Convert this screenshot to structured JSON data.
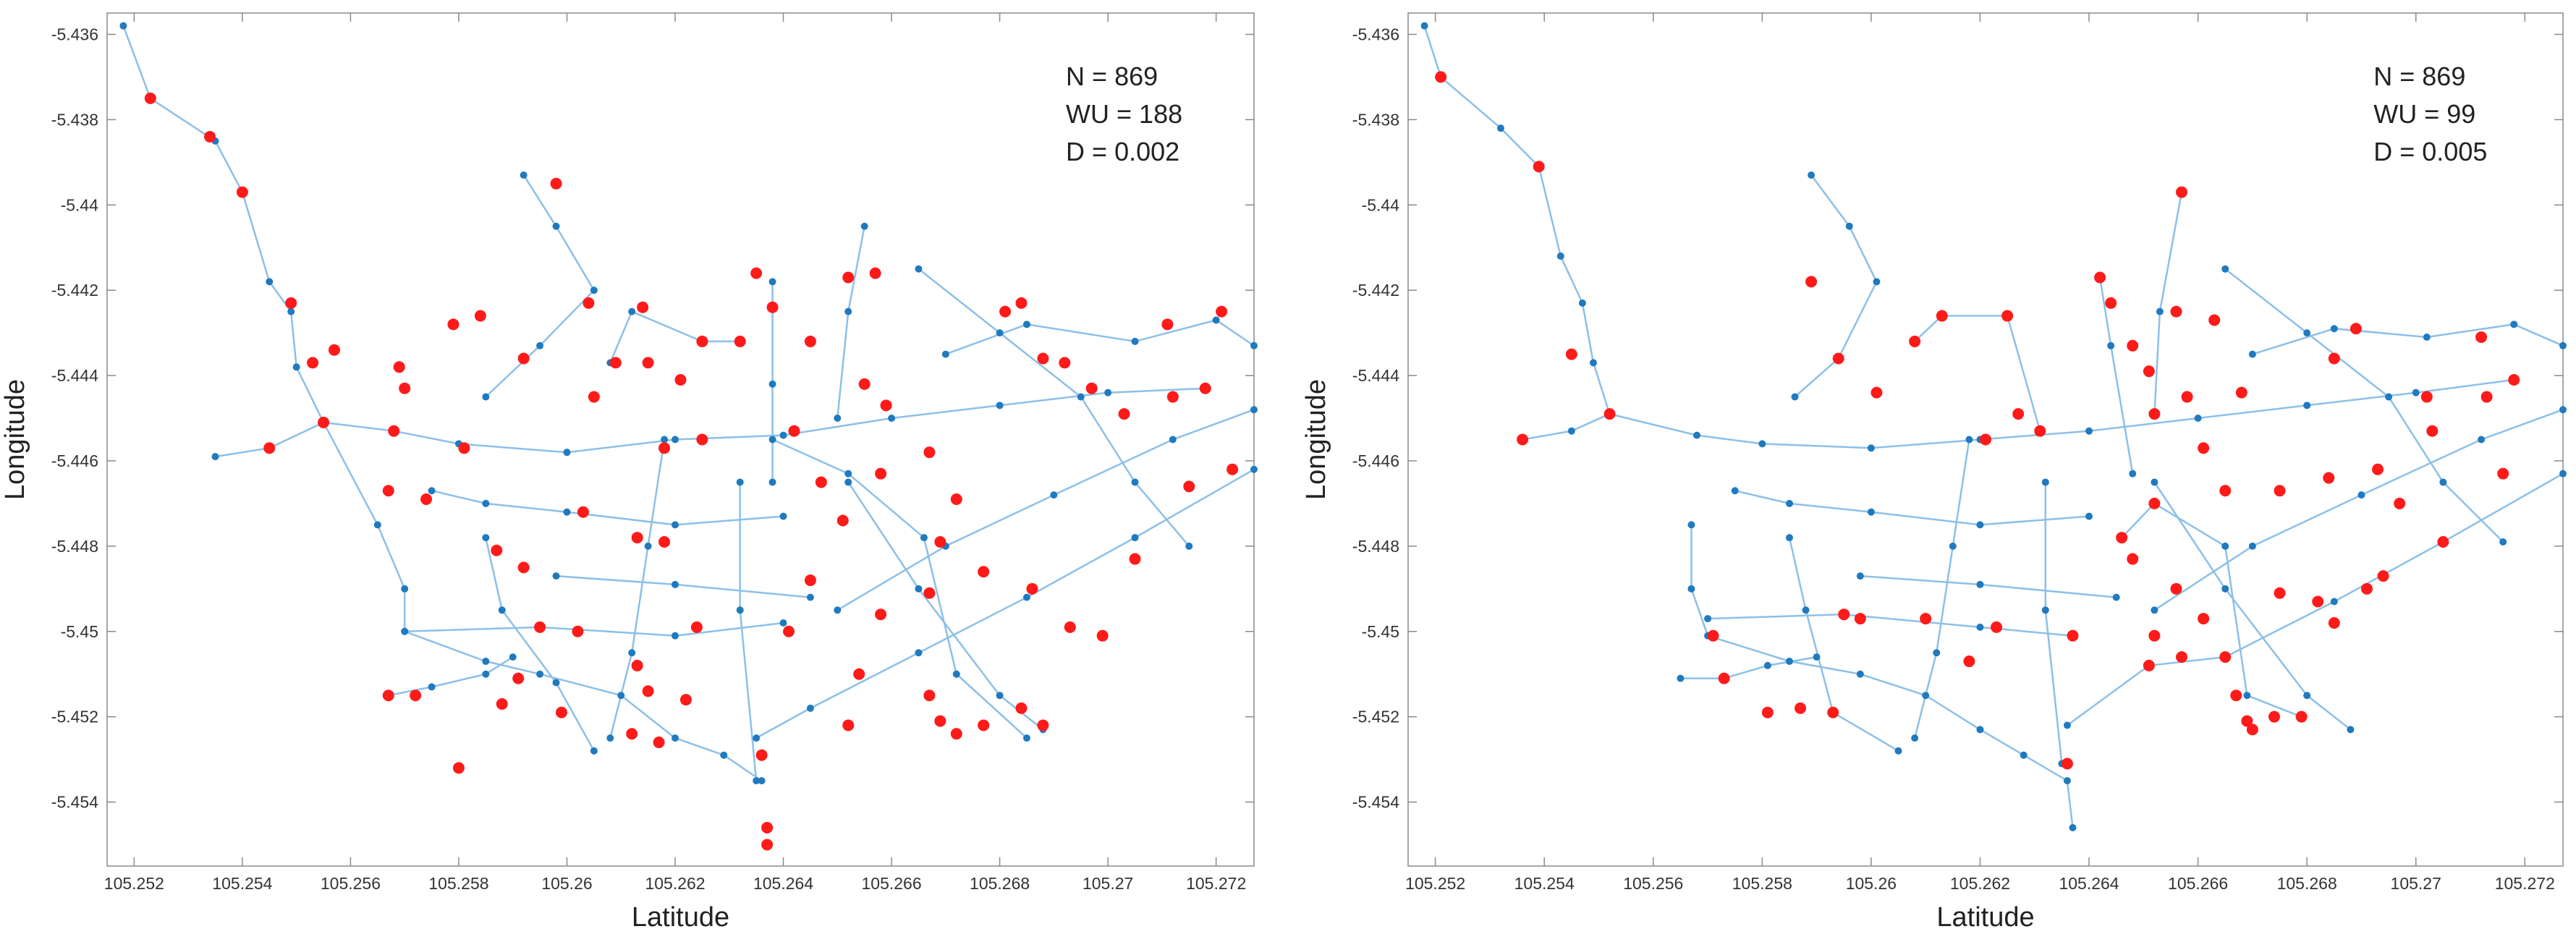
{
  "chart_data": [
    {
      "type": "network",
      "xlabel": "Latitude",
      "ylabel": "Longitude",
      "annotations": [
        "N = 869",
        "WU = 188",
        "D = 0.002"
      ],
      "xlim": [
        105.2515,
        105.2727
      ],
      "ylim": [
        -5.4555,
        -5.4355
      ],
      "xticks": [
        105.252,
        105.254,
        105.256,
        105.258,
        105.26,
        105.262,
        105.264,
        105.266,
        105.268,
        105.27,
        105.272
      ],
      "yticks": [
        -5.436,
        -5.438,
        -5.44,
        -5.442,
        -5.444,
        -5.446,
        -5.448,
        -5.45,
        -5.452,
        -5.454
      ],
      "line_color": "#8cc0e8",
      "node_color": "#1f7ac0",
      "lines": [
        {
          "x": [
            105.2518,
            105.2523,
            105.2535,
            105.254,
            105.2545,
            105.2549,
            105.255,
            105.2555
          ],
          "y": [
            -5.4358,
            -5.4375,
            -5.4385,
            -5.4397,
            -5.4418,
            -5.4425,
            -5.4438,
            -5.4451
          ]
        },
        {
          "x": [
            105.2535,
            105.2545,
            105.2555,
            105.2568,
            105.258,
            105.26,
            105.262,
            105.264,
            105.266,
            105.268,
            105.27,
            105.2718
          ],
          "y": [
            -5.4459,
            -5.4457,
            -5.4451,
            -5.4453,
            -5.4456,
            -5.4458,
            -5.4455,
            -5.4454,
            -5.445,
            -5.4447,
            -5.4444,
            -5.4443
          ]
        },
        {
          "x": [
            105.2555,
            105.2565,
            105.257,
            105.257,
            105.2585,
            105.2595,
            105.261,
            105.262,
            105.2629,
            105.2636
          ],
          "y": [
            -5.4451,
            -5.4475,
            -5.449,
            -5.45,
            -5.4507,
            -5.451,
            -5.4515,
            -5.4525,
            -5.4529,
            -5.4535
          ]
        },
        {
          "x": [
            105.2567,
            105.2575,
            105.2585,
            105.259
          ],
          "y": [
            -5.4515,
            -5.4513,
            -5.451,
            -5.4506
          ]
        },
        {
          "x": [
            105.257,
            105.2595,
            105.262,
            105.264
          ],
          "y": [
            -5.45,
            -5.4499,
            -5.4501,
            -5.4498
          ]
        },
        {
          "x": [
            105.2598,
            105.262,
            105.2645
          ],
          "y": [
            -5.4487,
            -5.4489,
            -5.4492
          ]
        },
        {
          "x": [
            105.2618,
            105.2615,
            105.2612,
            105.2608
          ],
          "y": [
            -5.4455,
            -5.448,
            -5.4505,
            -5.4525
          ]
        },
        {
          "x": [
            105.2632,
            105.2632,
            105.2635
          ],
          "y": [
            -5.4465,
            -5.4495,
            -5.4535
          ]
        },
        {
          "x": [
            105.2635,
            105.2645,
            105.2665,
            105.2685,
            105.2705,
            105.2727
          ],
          "y": [
            -5.4525,
            -5.4518,
            -5.4505,
            -5.4492,
            -5.4478,
            -5.4462
          ]
        },
        {
          "x": [
            105.265,
            105.267,
            105.269,
            105.2712,
            105.2727
          ],
          "y": [
            -5.4495,
            -5.448,
            -5.4468,
            -5.4455,
            -5.4448
          ]
        },
        {
          "x": [
            105.2652,
            105.2665,
            105.268,
            105.2688
          ],
          "y": [
            -5.4465,
            -5.449,
            -5.4515,
            -5.4523
          ]
        },
        {
          "x": [
            105.2638,
            105.2638,
            105.2638
          ],
          "y": [
            -5.4418,
            -5.4442,
            -5.4465
          ]
        },
        {
          "x": [
            105.2655,
            105.2652,
            105.265
          ],
          "y": [
            -5.4405,
            -5.4425,
            -5.445
          ]
        },
        {
          "x": [
            105.2592,
            105.2598,
            105.2605,
            105.2595,
            105.2585
          ],
          "y": [
            -5.4393,
            -5.4405,
            -5.442,
            -5.4433,
            -5.4445
          ]
        },
        {
          "x": [
            105.2665,
            105.268,
            105.2695,
            105.2705,
            105.2715
          ],
          "y": [
            -5.4415,
            -5.443,
            -5.4445,
            -5.4465,
            -5.448
          ]
        },
        {
          "x": [
            105.267,
            105.2685,
            105.2705,
            105.272,
            105.2727
          ],
          "y": [
            -5.4435,
            -5.4428,
            -5.4432,
            -5.4427,
            -5.4433
          ]
        },
        {
          "x": [
            105.2575,
            105.2585,
            105.26,
            105.262,
            105.264
          ],
          "y": [
            -5.4467,
            -5.447,
            -5.4472,
            -5.4475,
            -5.4473
          ]
        },
        {
          "x": [
            105.2585,
            105.2588,
            105.2598,
            105.2605
          ],
          "y": [
            -5.4478,
            -5.4495,
            -5.4512,
            -5.4528
          ]
        },
        {
          "x": [
            105.2638,
            105.2652,
            105.2666,
            105.2672,
            105.2685
          ],
          "y": [
            -5.4455,
            -5.4463,
            -5.4478,
            -5.451,
            -5.4525
          ]
        },
        {
          "x": [
            105.2608,
            105.2612,
            105.2625,
            105.2632
          ],
          "y": [
            -5.4437,
            -5.4425,
            -5.4432,
            -5.4432
          ]
        }
      ],
      "points": {
        "color": "#ff1a1a",
        "x": [
          105.2523,
          105.2534,
          105.254,
          105.2549,
          105.2553,
          105.2557,
          105.2545,
          105.2555,
          105.2568,
          105.2569,
          105.257,
          105.2579,
          105.2581,
          105.2584,
          105.2592,
          105.2598,
          105.2604,
          105.2609,
          105.2605,
          105.2614,
          105.2618,
          105.2625,
          105.2615,
          105.2621,
          105.2625,
          105.2632,
          105.2635,
          105.2638,
          105.2645,
          105.2642,
          105.2652,
          105.2657,
          105.2655,
          105.2659,
          105.2667,
          105.2672,
          105.2681,
          105.2684,
          105.2688,
          105.2692,
          105.2697,
          105.2703,
          105.2712,
          105.2718,
          105.2711,
          105.2721,
          105.2647,
          105.2651,
          105.2658,
          105.2669,
          105.2667,
          105.2677,
          105.2686,
          105.2693,
          105.2699,
          105.2705,
          105.2715,
          105.2723,
          105.2587,
          105.2592,
          105.2603,
          105.2613,
          105.2618,
          105.2595,
          105.2602,
          105.2624,
          105.2641,
          105.2658,
          105.2645,
          105.2613,
          105.2591,
          105.2588,
          105.2599,
          105.2615,
          105.2622,
          105.2636,
          105.2637,
          105.2637,
          105.2567,
          105.2572,
          105.258,
          105.2612,
          105.2617,
          105.2652,
          105.2654,
          105.2667,
          105.2669,
          105.2672,
          105.2677,
          105.2684,
          105.2688,
          105.2574,
          105.2567
        ],
        "y": [
          -5.4375,
          -5.4384,
          -5.4397,
          -5.4423,
          -5.4437,
          -5.4434,
          -5.4457,
          -5.4451,
          -5.4453,
          -5.4438,
          -5.4443,
          -5.4428,
          -5.4457,
          -5.4426,
          -5.4436,
          -5.4395,
          -5.4423,
          -5.4437,
          -5.4445,
          -5.4424,
          -5.4457,
          -5.4455,
          -5.4437,
          -5.4441,
          -5.4432,
          -5.4432,
          -5.4416,
          -5.4424,
          -5.4432,
          -5.4453,
          -5.4417,
          -5.4416,
          -5.4442,
          -5.4447,
          -5.4458,
          -5.4469,
          -5.4425,
          -5.4423,
          -5.4436,
          -5.4437,
          -5.4443,
          -5.4449,
          -5.4445,
          -5.4443,
          -5.4428,
          -5.4425,
          -5.4465,
          -5.4474,
          -5.4463,
          -5.4479,
          -5.4491,
          -5.4486,
          -5.449,
          -5.4499,
          -5.4501,
          -5.4483,
          -5.4466,
          -5.4462,
          -5.4481,
          -5.4485,
          -5.4472,
          -5.4478,
          -5.4479,
          -5.4499,
          -5.45,
          -5.4499,
          -5.45,
          -5.4496,
          -5.4488,
          -5.4508,
          -5.4511,
          -5.4517,
          -5.4519,
          -5.4514,
          -5.4516,
          -5.4529,
          -5.4546,
          -5.455,
          -5.4515,
          -5.4515,
          -5.4532,
          -5.4524,
          -5.4526,
          -5.4522,
          -5.451,
          -5.4515,
          -5.4521,
          -5.4524,
          -5.4522,
          -5.4518,
          -5.4522,
          -5.4469,
          -5.4467
        ]
      }
    },
    {
      "type": "network",
      "xlabel": "Latitude",
      "ylabel": "Longitude",
      "annotations": [
        "N = 869",
        "WU = 99",
        "D = 0.005"
      ],
      "xlim": [
        105.2515,
        105.2727
      ],
      "ylim": [
        -5.4555,
        -5.4355
      ],
      "xticks": [
        105.252,
        105.254,
        105.256,
        105.258,
        105.26,
        105.262,
        105.264,
        105.266,
        105.268,
        105.27,
        105.272
      ],
      "yticks": [
        -5.436,
        -5.438,
        -5.44,
        -5.442,
        -5.444,
        -5.446,
        -5.448,
        -5.45,
        -5.452,
        -5.454
      ],
      "line_color": "#8cc0e8",
      "node_color": "#1f7ac0",
      "lines": [
        {
          "x": [
            105.2518,
            105.2521,
            105.2532,
            105.2539,
            105.2543,
            105.2547,
            105.2549,
            105.2552
          ],
          "y": [
            -5.4358,
            -5.437,
            -5.4382,
            -5.4391,
            -5.4412,
            -5.4423,
            -5.4437,
            -5.4449
          ]
        },
        {
          "x": [
            105.2536,
            105.2545,
            105.2552,
            105.2568,
            105.258,
            105.26,
            105.262,
            105.264,
            105.266,
            105.268,
            105.27,
            105.2718
          ],
          "y": [
            -5.4455,
            -5.4453,
            -5.4449,
            -5.4454,
            -5.4456,
            -5.4457,
            -5.4455,
            -5.4453,
            -5.445,
            -5.4447,
            -5.4444,
            -5.4441
          ]
        },
        {
          "x": [
            105.2567,
            105.2567,
            105.257,
            105.2585,
            105.2598,
            105.261,
            105.262,
            105.2628,
            105.2636,
            105.2637
          ],
          "y": [
            -5.4475,
            -5.449,
            -5.4501,
            -5.4507,
            -5.451,
            -5.4515,
            -5.4523,
            -5.4529,
            -5.4535,
            -5.4546
          ]
        },
        {
          "x": [
            105.2565,
            105.2573,
            105.2581,
            105.259
          ],
          "y": [
            -5.4511,
            -5.4511,
            -5.4508,
            -5.4506
          ]
        },
        {
          "x": [
            105.257,
            105.2595,
            105.262,
            105.2637
          ],
          "y": [
            -5.4497,
            -5.4496,
            -5.4499,
            -5.4501
          ]
        },
        {
          "x": [
            105.2598,
            105.262,
            105.2645
          ],
          "y": [
            -5.4487,
            -5.4489,
            -5.4492
          ]
        },
        {
          "x": [
            105.2618,
            105.2615,
            105.2612,
            105.2608
          ],
          "y": [
            -5.4455,
            -5.448,
            -5.4505,
            -5.4525
          ]
        },
        {
          "x": [
            105.2632,
            105.2632,
            105.2635
          ],
          "y": [
            -5.4465,
            -5.4495,
            -5.4531
          ]
        },
        {
          "x": [
            105.2636,
            105.2651,
            105.2665,
            105.2685,
            105.2705,
            105.2727
          ],
          "y": [
            -5.4522,
            -5.4508,
            -5.4506,
            -5.4493,
            -5.4479,
            -5.4463
          ]
        },
        {
          "x": [
            105.2652,
            105.267,
            105.269,
            105.2712,
            105.2727
          ],
          "y": [
            -5.4495,
            -5.448,
            -5.4468,
            -5.4455,
            -5.4448
          ]
        },
        {
          "x": [
            105.2652,
            105.2665,
            105.268,
            105.2688
          ],
          "y": [
            -5.4465,
            -5.449,
            -5.4515,
            -5.4523
          ]
        },
        {
          "x": [
            105.2642,
            105.2644,
            105.2648
          ],
          "y": [
            -5.4417,
            -5.4433,
            -5.4463
          ]
        },
        {
          "x": [
            105.2657,
            105.2653,
            105.2652
          ],
          "y": [
            -5.4397,
            -5.4425,
            -5.4449
          ]
        },
        {
          "x": [
            105.2589,
            105.2596,
            105.2601,
            105.2594,
            105.2586
          ],
          "y": [
            -5.4393,
            -5.4405,
            -5.4418,
            -5.4436,
            -5.4445
          ]
        },
        {
          "x": [
            105.2665,
            105.268,
            105.2695,
            105.2705,
            105.2716
          ],
          "y": [
            -5.4415,
            -5.443,
            -5.4445,
            -5.4465,
            -5.4479
          ]
        },
        {
          "x": [
            105.267,
            105.2685,
            105.2702,
            105.2718,
            105.2727
          ],
          "y": [
            -5.4435,
            -5.4429,
            -5.4431,
            -5.4428,
            -5.4433
          ]
        },
        {
          "x": [
            105.2575,
            105.2585,
            105.26,
            105.262,
            105.264
          ],
          "y": [
            -5.4467,
            -5.447,
            -5.4472,
            -5.4475,
            -5.4473
          ]
        },
        {
          "x": [
            105.2585,
            105.2588,
            105.2593,
            105.2605
          ],
          "y": [
            -5.4478,
            -5.4495,
            -5.4519,
            -5.4528
          ]
        },
        {
          "x": [
            105.2646,
            105.2652,
            105.2665,
            105.2669,
            105.2679
          ],
          "y": [
            -5.4478,
            -5.447,
            -5.448,
            -5.4515,
            -5.452
          ]
        },
        {
          "x": [
            105.2608,
            105.2613,
            105.2625,
            105.2631
          ],
          "y": [
            -5.4432,
            -5.4426,
            -5.4426,
            -5.4453
          ]
        }
      ],
      "points": {
        "color": "#ff1a1a",
        "x": [
          105.2521,
          105.2539,
          105.2545,
          105.2536,
          105.2552,
          105.2589,
          105.2594,
          105.2601,
          105.2608,
          105.2613,
          105.2625,
          105.2627,
          105.2621,
          105.2631,
          105.2642,
          105.2644,
          105.2648,
          105.2651,
          105.2656,
          105.2663,
          105.2652,
          105.2658,
          105.2668,
          105.2657,
          105.2685,
          105.2689,
          105.2702,
          105.2713,
          105.2718,
          105.2712,
          105.2661,
          105.2665,
          105.2675,
          105.2684,
          105.2693,
          105.2697,
          105.2705,
          105.2716,
          105.2703,
          105.2571,
          105.2573,
          105.2587,
          105.2595,
          105.2598,
          105.261,
          105.2618,
          105.2623,
          105.2637,
          105.2656,
          105.2661,
          105.2675,
          105.2682,
          105.2685,
          105.2691,
          105.2694,
          105.2652,
          105.2657,
          105.2651,
          105.2665,
          105.2667,
          105.2669,
          105.267,
          105.2674,
          105.2679,
          105.2636,
          105.2593,
          105.2581,
          105.2646,
          105.2652,
          105.2648
        ],
        "y": [
          -5.437,
          -5.4391,
          -5.4435,
          -5.4455,
          -5.4449,
          -5.4418,
          -5.4436,
          -5.4444,
          -5.4432,
          -5.4426,
          -5.4426,
          -5.4449,
          -5.4455,
          -5.4453,
          -5.4417,
          -5.4423,
          -5.4433,
          -5.4439,
          -5.4425,
          -5.4427,
          -5.4449,
          -5.4445,
          -5.4444,
          -5.4397,
          -5.4436,
          -5.4429,
          -5.4445,
          -5.4445,
          -5.4441,
          -5.4431,
          -5.4457,
          -5.4467,
          -5.4467,
          -5.4464,
          -5.4462,
          -5.447,
          -5.4479,
          -5.4463,
          -5.4453,
          -5.4501,
          -5.4511,
          -5.4518,
          -5.4496,
          -5.4497,
          -5.4497,
          -5.4507,
          -5.4499,
          -5.4501,
          -5.449,
          -5.4497,
          -5.4491,
          -5.4493,
          -5.4498,
          -5.449,
          -5.4487,
          -5.4501,
          -5.4506,
          -5.4508,
          -5.4506,
          -5.4515,
          -5.4521,
          -5.4523,
          -5.452,
          -5.452,
          -5.4531,
          -5.4519,
          -5.4519,
          -5.4478,
          -5.447,
          -5.4483
        ]
      }
    }
  ]
}
